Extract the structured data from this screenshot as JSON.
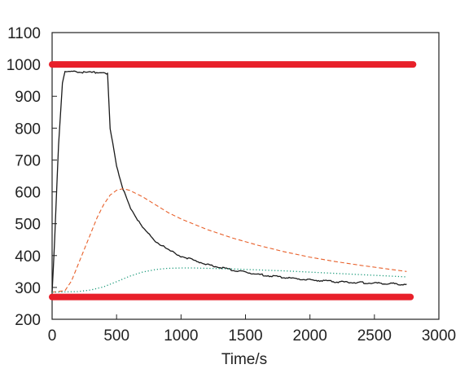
{
  "chart_data": {
    "type": "line",
    "title": "",
    "xlabel": "Time/s",
    "ylabel": "",
    "xlim": [
      0,
      3000
    ],
    "ylim": [
      200,
      1100
    ],
    "x_ticks": [
      0,
      500,
      1000,
      1500,
      2000,
      2500,
      3000
    ],
    "y_ticks": [
      200,
      300,
      400,
      500,
      600,
      700,
      800,
      900,
      1000,
      1100
    ],
    "grid": false,
    "legend": "none",
    "series": [
      {
        "style": "thick-solid",
        "color": "#e8202a",
        "x": [
          0,
          2800
        ],
        "y": [
          1000,
          1000
        ]
      },
      {
        "style": "thick-solid",
        "color": "#e8202a",
        "x": [
          0,
          2780
        ],
        "y": [
          270,
          270
        ]
      },
      {
        "style": "solid",
        "color": "#1a1a1a",
        "x": [
          0,
          20,
          50,
          80,
          100,
          150,
          200,
          300,
          400,
          430,
          450,
          500,
          550,
          600,
          700,
          800,
          900,
          1000,
          1200,
          1400,
          1600,
          1800,
          2000,
          2200,
          2400,
          2600,
          2750
        ],
        "y": [
          285,
          450,
          750,
          940,
          980,
          978,
          976,
          975,
          975,
          970,
          800,
          680,
          610,
          555,
          488,
          446,
          418,
          398,
          372,
          354,
          341,
          331,
          324,
          318,
          315,
          312,
          310
        ]
      },
      {
        "style": "dashed",
        "color": "#e8602a",
        "x": [
          0,
          100,
          150,
          200,
          250,
          300,
          350,
          400,
          450,
          500,
          550,
          600,
          700,
          800,
          900,
          1000,
          1200,
          1400,
          1600,
          1800,
          2000,
          2200,
          2400,
          2600,
          2750
        ],
        "y": [
          285,
          290,
          320,
          370,
          420,
          470,
          520,
          560,
          590,
          605,
          610,
          605,
          585,
          560,
          535,
          515,
          482,
          455,
          432,
          412,
          395,
          381,
          369,
          358,
          350
        ]
      },
      {
        "style": "dotted",
        "color": "#1a9a7a",
        "x": [
          0,
          200,
          300,
          400,
          500,
          600,
          700,
          800,
          900,
          1000,
          1100,
          1200,
          1400,
          1600,
          1800,
          2000,
          2200,
          2400,
          2600,
          2750
        ],
        "y": [
          285,
          287,
          292,
          302,
          318,
          335,
          348,
          356,
          360,
          361,
          361,
          360,
          358,
          355,
          352,
          348,
          344,
          340,
          336,
          333
        ]
      }
    ]
  }
}
